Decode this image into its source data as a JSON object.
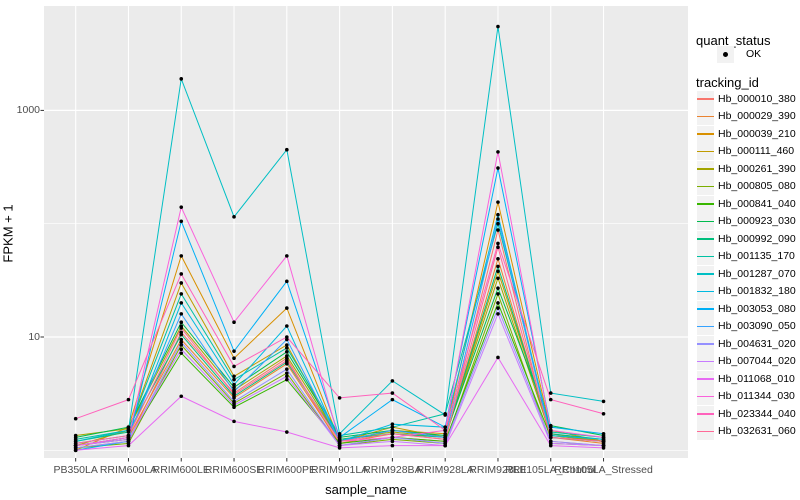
{
  "chart_data": {
    "type": "line",
    "title": "",
    "xlabel": "sample_name",
    "ylabel": "FPKM + 1",
    "y_scale": "log10",
    "ylim": [
      0.85,
      8300
    ],
    "grid": true,
    "legend_position": "right",
    "panel_bg": "#EBEBEB",
    "grid_color": "#FFFFFF",
    "point_color": "#000000",
    "y_ticks": [
      {
        "value": 10,
        "label": "10"
      },
      {
        "value": 1000,
        "label": "1000"
      }
    ],
    "y_minor_gridlines": [
      1,
      100
    ],
    "categories": [
      "PB350LA",
      "RRIM600LA",
      "RRIM600LE",
      "RRIM600SE",
      "RRIM600PE",
      "RRIM901LA",
      "RRIM928BA",
      "RRIM928LA",
      "RRIM928LE",
      "RRII105LA_Control",
      "RRII105LA_Stressed"
    ],
    "series": [
      {
        "name": "Hb_000010_380",
        "color": "#F8766D",
        "values": [
          1.05,
          1.2,
          11,
          3.2,
          6.5,
          1.1,
          1.3,
          1.2,
          88,
          1.2,
          1.1
        ]
      },
      {
        "name": "Hb_000029_390",
        "color": "#EA8331",
        "values": [
          1.1,
          1.3,
          9.5,
          2.9,
          5.8,
          1.15,
          1.4,
          1.25,
          49,
          1.3,
          1.15
        ]
      },
      {
        "name": "Hb_000039_210",
        "color": "#D89000",
        "values": [
          1.0,
          1.6,
          52,
          6.5,
          18,
          1.2,
          1.5,
          1.4,
          155,
          1.5,
          1.2
        ]
      },
      {
        "name": "Hb_000111_460",
        "color": "#C09B00",
        "values": [
          1.1,
          1.5,
          30,
          4.5,
          8.5,
          1.2,
          1.6,
          1.3,
          38,
          1.4,
          1.2
        ]
      },
      {
        "name": "Hb_000261_390",
        "color": "#A3A500",
        "values": [
          1.35,
          1.55,
          12.5,
          3.4,
          6.8,
          1.25,
          1.45,
          1.3,
          33,
          1.35,
          1.2
        ]
      },
      {
        "name": "Hb_000805_080",
        "color": "#7CAE00",
        "values": [
          1.05,
          1.15,
          8.5,
          2.6,
          4.8,
          1.1,
          1.25,
          1.15,
          24,
          1.15,
          1.1
        ]
      },
      {
        "name": "Hb_000841_040",
        "color": "#39B600",
        "values": [
          1.1,
          1.25,
          7.2,
          2.4,
          4.2,
          1.15,
          1.3,
          1.2,
          20,
          1.3,
          1.2
        ]
      },
      {
        "name": "Hb_000923_030",
        "color": "#00BB4E",
        "values": [
          1.3,
          1.6,
          13.5,
          3.6,
          7.4,
          1.3,
          1.5,
          1.35,
          27,
          1.65,
          1.35
        ]
      },
      {
        "name": "Hb_000992_090",
        "color": "#00BF7D",
        "values": [
          1.2,
          1.45,
          10.5,
          3.0,
          6.0,
          1.25,
          1.4,
          1.3,
          42,
          1.4,
          1.25
        ]
      },
      {
        "name": "Hb_001135_170",
        "color": "#00C1A3",
        "values": [
          1.25,
          1.5,
          24,
          4.2,
          8.0,
          1.35,
          1.6,
          2.1,
          100,
          1.45,
          1.3
        ]
      },
      {
        "name": "Hb_001287_070",
        "color": "#00BFC4",
        "values": [
          1.2,
          1.5,
          1900,
          115,
          450,
          1.4,
          4.1,
          2.05,
          5500,
          3.2,
          2.7
        ]
      },
      {
        "name": "Hb_001832_180",
        "color": "#00BAE0",
        "values": [
          1.1,
          1.3,
          20,
          3.8,
          12.5,
          1.2,
          1.7,
          1.6,
          120,
          1.35,
          1.25
        ]
      },
      {
        "name": "Hb_003053_080",
        "color": "#00B0F6",
        "values": [
          1.0,
          1.2,
          105,
          7.5,
          31,
          1.3,
          2.8,
          1.6,
          310,
          1.6,
          1.4
        ]
      },
      {
        "name": "Hb_003090_050",
        "color": "#35A2FF",
        "values": [
          1.15,
          1.35,
          16,
          3.3,
          9.5,
          1.2,
          1.5,
          1.3,
          110,
          1.3,
          1.2
        ]
      },
      {
        "name": "Hb_004631_020",
        "color": "#9590FF",
        "values": [
          1.05,
          1.2,
          9.0,
          2.7,
          5.2,
          1.1,
          1.3,
          1.15,
          18,
          1.2,
          1.1
        ]
      },
      {
        "name": "Hb_007044_020",
        "color": "#C77CFF",
        "values": [
          1.1,
          1.25,
          7.8,
          2.5,
          4.5,
          1.1,
          1.2,
          1.1,
          16,
          1.15,
          1.1
        ]
      },
      {
        "name": "Hb_011068_010",
        "color": "#E76BF3",
        "values": [
          1.0,
          1.1,
          3.0,
          1.8,
          1.45,
          1.05,
          1.1,
          1.1,
          6.6,
          1.1,
          1.05
        ]
      },
      {
        "name": "Hb_011344_030",
        "color": "#FA62DB",
        "values": [
          1.1,
          1.3,
          140,
          13.5,
          52,
          1.2,
          1.3,
          1.5,
          430,
          1.5,
          1.3
        ]
      },
      {
        "name": "Hb_023344_040",
        "color": "#FF62BC",
        "values": [
          1.9,
          2.8,
          36,
          5.5,
          10,
          2.9,
          3.2,
          1.5,
          67,
          2.8,
          2.1
        ]
      },
      {
        "name": "Hb_032631_060",
        "color": "#FF6A98",
        "values": [
          1.15,
          1.35,
          12,
          3.1,
          6.2,
          1.2,
          1.4,
          1.25,
          62,
          1.3,
          1.2
        ]
      }
    ]
  },
  "legend": {
    "quant_status": {
      "title": "quant_status",
      "items": [
        {
          "label": "OK",
          "marker": "point"
        }
      ]
    },
    "tracking_id": {
      "title": "tracking_id"
    }
  }
}
